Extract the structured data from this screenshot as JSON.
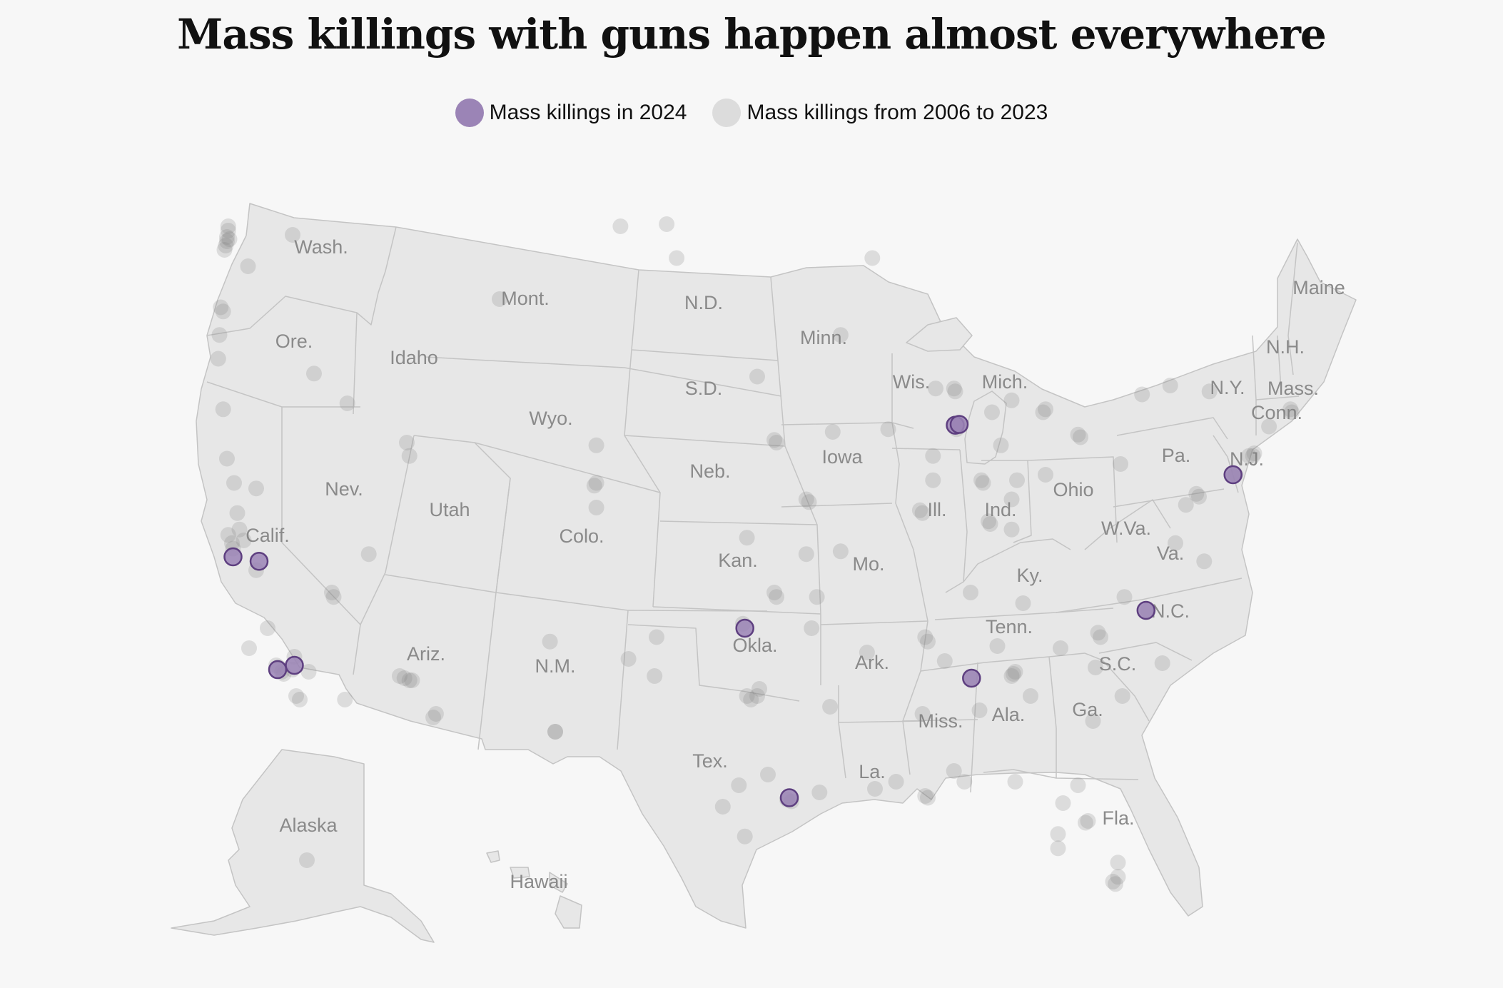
{
  "title": "Mass killings with guns happen almost everywhere",
  "legend": {
    "current_label": "Mass killings in 2024",
    "past_label": "Mass killings from 2006 to 2023"
  },
  "colors": {
    "background": "#f7f7f7",
    "land": "#e7e7e7",
    "border": "#c4c4c4",
    "current_fill": "#9b84b6",
    "current_stroke": "#5e3f80",
    "past_fill": "#808080"
  },
  "state_labels": [
    "Wash.",
    "Ore.",
    "Calif.",
    "Nev.",
    "Idaho",
    "Mont.",
    "Wyo.",
    "Utah",
    "Colo.",
    "Ariz.",
    "N.M.",
    "N.D.",
    "S.D.",
    "Neb.",
    "Kan.",
    "Okla.",
    "Tex.",
    "Minn.",
    "Iowa",
    "Mo.",
    "Ark.",
    "La.",
    "Wis.",
    "Ill.",
    "Mich.",
    "Ind.",
    "Ohio",
    "Ky.",
    "Tenn.",
    "Miss.",
    "Ala.",
    "Ga.",
    "Fla.",
    "S.C.",
    "N.C.",
    "Va.",
    "W.Va.",
    "Pa.",
    "N.Y.",
    "N.J.",
    "Conn.",
    "Mass.",
    "N.H.",
    "Maine",
    "Alaska",
    "Hawaii"
  ],
  "map_data": {
    "markers_2024": [
      {
        "lon": -121.9,
        "lat": 37.0
      },
      {
        "lon": -119.6,
        "lat": 36.9
      },
      {
        "lon": -117.3,
        "lat": 34.1
      },
      {
        "lon": -118.3,
        "lat": 33.9
      },
      {
        "lon": -87.9,
        "lat": 41.85
      },
      {
        "lon": -87.6,
        "lat": 41.88
      },
      {
        "lon": -97.4,
        "lat": 35.4
      },
      {
        "lon": -95.3,
        "lat": 29.9
      },
      {
        "lon": -86.75,
        "lat": 33.5
      },
      {
        "lon": -78.7,
        "lat": 35.8
      },
      {
        "lon": -75.2,
        "lat": 40.0
      }
    ],
    "markers_2006_2023": [
      {
        "lon": -122.3,
        "lat": 47.9
      },
      {
        "lon": -122.4,
        "lat": 47.6
      },
      {
        "lon": -122.4,
        "lat": 47.4
      },
      {
        "lon": -122.5,
        "lat": 47.2
      },
      {
        "lon": -122.6,
        "lat": 47.0
      },
      {
        "lon": -122.2,
        "lat": 47.5
      },
      {
        "lon": -122.3,
        "lat": 48.1
      },
      {
        "lon": -117.4,
        "lat": 47.7
      },
      {
        "lon": -120.5,
        "lat": 46.6
      },
      {
        "lon": -122.7,
        "lat": 45.5
      },
      {
        "lon": -122.9,
        "lat": 45.6
      },
      {
        "lon": -123.0,
        "lat": 44.9
      },
      {
        "lon": -123.1,
        "lat": 44.1
      },
      {
        "lon": -122.7,
        "lat": 42.4
      },
      {
        "lon": -116.2,
        "lat": 43.6
      },
      {
        "lon": -114.5,
        "lat": 42.6
      },
      {
        "lon": -122.4,
        "lat": 40.6
      },
      {
        "lon": -121.8,
        "lat": 39.7
      },
      {
        "lon": -121.5,
        "lat": 38.6
      },
      {
        "lon": -122.3,
        "lat": 37.8
      },
      {
        "lon": -122.0,
        "lat": 37.5
      },
      {
        "lon": -121.9,
        "lat": 37.3
      },
      {
        "lon": -121.3,
        "lat": 38.0
      },
      {
        "lon": -120.9,
        "lat": 37.6
      },
      {
        "lon": -119.8,
        "lat": 36.7
      },
      {
        "lon": -119.0,
        "lat": 35.4
      },
      {
        "lon": -120.4,
        "lat": 34.9
      },
      {
        "lon": -118.4,
        "lat": 34.1
      },
      {
        "lon": -118.2,
        "lat": 34.0
      },
      {
        "lon": -118.0,
        "lat": 33.8
      },
      {
        "lon": -117.9,
        "lat": 33.7
      },
      {
        "lon": -117.4,
        "lat": 33.9
      },
      {
        "lon": -117.2,
        "lat": 32.8
      },
      {
        "lon": -117.0,
        "lat": 32.7
      },
      {
        "lon": -116.5,
        "lat": 33.8
      },
      {
        "lon": -117.3,
        "lat": 34.5
      },
      {
        "lon": -119.8,
        "lat": 39.5
      },
      {
        "lon": -115.2,
        "lat": 36.2
      },
      {
        "lon": -115.1,
        "lat": 36.1
      },
      {
        "lon": -111.9,
        "lat": 40.7
      },
      {
        "lon": -112.0,
        "lat": 41.2
      },
      {
        "lon": -113.6,
        "lat": 37.1
      },
      {
        "lon": -112.1,
        "lat": 33.5
      },
      {
        "lon": -111.9,
        "lat": 33.4
      },
      {
        "lon": -111.8,
        "lat": 33.4
      },
      {
        "lon": -112.3,
        "lat": 33.6
      },
      {
        "lon": -111.0,
        "lat": 32.2
      },
      {
        "lon": -110.9,
        "lat": 32.3
      },
      {
        "lon": -114.6,
        "lat": 32.7
      },
      {
        "lon": -104.8,
        "lat": 39.7
      },
      {
        "lon": -104.9,
        "lat": 39.6
      },
      {
        "lon": -104.8,
        "lat": 38.8
      },
      {
        "lon": -106.6,
        "lat": 35.1
      },
      {
        "lon": -103.2,
        "lat": 34.4
      },
      {
        "lon": -106.4,
        "lat": 31.8
      },
      {
        "lon": -108.5,
        "lat": 45.8
      },
      {
        "lon": -104.8,
        "lat": 41.1
      },
      {
        "lon": -100.8,
        "lat": 46.8
      },
      {
        "lon": -101.3,
        "lat": 48.2
      },
      {
        "lon": -103.6,
        "lat": 48.1
      },
      {
        "lon": -96.8,
        "lat": 43.5
      },
      {
        "lon": -96.0,
        "lat": 41.3
      },
      {
        "lon": -95.9,
        "lat": 41.2
      },
      {
        "lon": -94.6,
        "lat": 39.1
      },
      {
        "lon": -94.5,
        "lat": 39.0
      },
      {
        "lon": -97.3,
        "lat": 37.7
      },
      {
        "lon": -97.5,
        "lat": 35.5
      },
      {
        "lon": -95.9,
        "lat": 36.1
      },
      {
        "lon": -96.0,
        "lat": 36.2
      },
      {
        "lon": -94.4,
        "lat": 35.4
      },
      {
        "lon": -96.8,
        "lat": 32.8
      },
      {
        "lon": -97.3,
        "lat": 32.8
      },
      {
        "lon": -96.7,
        "lat": 33.0
      },
      {
        "lon": -97.1,
        "lat": 32.7
      },
      {
        "lon": -97.7,
        "lat": 30.3
      },
      {
        "lon": -98.5,
        "lat": 29.4
      },
      {
        "lon": -95.4,
        "lat": 29.8
      },
      {
        "lon": -95.2,
        "lat": 29.7
      },
      {
        "lon": -94.1,
        "lat": 30.1
      },
      {
        "lon": -97.4,
        "lat": 27.8
      },
      {
        "lon": -101.9,
        "lat": 33.6
      },
      {
        "lon": -101.8,
        "lat": 35.2
      },
      {
        "lon": -106.4,
        "lat": 31.8
      },
      {
        "lon": -96.3,
        "lat": 30.6
      },
      {
        "lon": -93.3,
        "lat": 44.9
      },
      {
        "lon": -92.1,
        "lat": 46.8
      },
      {
        "lon": -93.6,
        "lat": 41.6
      },
      {
        "lon": -91.5,
        "lat": 41.7
      },
      {
        "lon": -90.2,
        "lat": 38.6
      },
      {
        "lon": -90.3,
        "lat": 38.7
      },
      {
        "lon": -94.6,
        "lat": 37.1
      },
      {
        "lon": -93.3,
        "lat": 37.2
      },
      {
        "lon": -92.3,
        "lat": 34.7
      },
      {
        "lon": -94.2,
        "lat": 36.1
      },
      {
        "lon": -91.2,
        "lat": 30.4
      },
      {
        "lon": -90.1,
        "lat": 30.0
      },
      {
        "lon": -90.0,
        "lat": 29.9
      },
      {
        "lon": -93.7,
        "lat": 32.5
      },
      {
        "lon": -92.0,
        "lat": 30.2
      },
      {
        "lon": -87.9,
        "lat": 43.0
      },
      {
        "lon": -88.0,
        "lat": 43.1
      },
      {
        "lon": -89.4,
        "lat": 43.1
      },
      {
        "lon": -87.7,
        "lat": 41.9
      },
      {
        "lon": -87.6,
        "lat": 41.8
      },
      {
        "lon": -87.8,
        "lat": 41.7
      },
      {
        "lon": -89.6,
        "lat": 40.7
      },
      {
        "lon": -89.6,
        "lat": 39.8
      },
      {
        "lon": -83.0,
        "lat": 42.4
      },
      {
        "lon": -83.1,
        "lat": 42.3
      },
      {
        "lon": -85.6,
        "lat": 42.3
      },
      {
        "lon": -84.5,
        "lat": 42.7
      },
      {
        "lon": -86.2,
        "lat": 39.8
      },
      {
        "lon": -86.1,
        "lat": 39.7
      },
      {
        "lon": -85.1,
        "lat": 41.1
      },
      {
        "lon": -83.0,
        "lat": 40.0
      },
      {
        "lon": -81.7,
        "lat": 41.5
      },
      {
        "lon": -81.6,
        "lat": 41.4
      },
      {
        "lon": -84.5,
        "lat": 39.1
      },
      {
        "lon": -84.2,
        "lat": 39.8
      },
      {
        "lon": -80.0,
        "lat": 40.4
      },
      {
        "lon": -75.2,
        "lat": 39.95
      },
      {
        "lon": -75.1,
        "lat": 40.0
      },
      {
        "lon": -76.6,
        "lat": 39.3
      },
      {
        "lon": -76.5,
        "lat": 39.2
      },
      {
        "lon": -77.0,
        "lat": 38.9
      },
      {
        "lon": -77.4,
        "lat": 37.5
      },
      {
        "lon": -76.3,
        "lat": 36.9
      },
      {
        "lon": -73.9,
        "lat": 40.7
      },
      {
        "lon": -73.8,
        "lat": 40.8
      },
      {
        "lon": -74.2,
        "lat": 40.7
      },
      {
        "lon": -72.7,
        "lat": 41.8
      },
      {
        "lon": -71.1,
        "lat": 42.4
      },
      {
        "lon": -71.0,
        "lat": 42.3
      },
      {
        "lon": -78.9,
        "lat": 42.9
      },
      {
        "lon": -77.6,
        "lat": 43.2
      },
      {
        "lon": -76.1,
        "lat": 43.0
      },
      {
        "lon": -85.8,
        "lat": 38.3
      },
      {
        "lon": -85.7,
        "lat": 38.2
      },
      {
        "lon": -84.5,
        "lat": 38.0
      },
      {
        "lon": -86.8,
        "lat": 36.2
      },
      {
        "lon": -90.0,
        "lat": 35.1
      },
      {
        "lon": -90.1,
        "lat": 35.2
      },
      {
        "lon": -85.3,
        "lat": 35.0
      },
      {
        "lon": -83.9,
        "lat": 35.96
      },
      {
        "lon": -90.2,
        "lat": 32.3
      },
      {
        "lon": -88.7,
        "lat": 34.3
      },
      {
        "lon": -86.8,
        "lat": 33.5
      },
      {
        "lon": -88.0,
        "lat": 30.7
      },
      {
        "lon": -86.3,
        "lat": 32.4
      },
      {
        "lon": -84.4,
        "lat": 33.7
      },
      {
        "lon": -84.3,
        "lat": 33.8
      },
      {
        "lon": -84.5,
        "lat": 33.6
      },
      {
        "lon": -81.1,
        "lat": 32.1
      },
      {
        "lon": -83.6,
        "lat": 32.8
      },
      {
        "lon": -80.8,
        "lat": 35.2
      },
      {
        "lon": -80.9,
        "lat": 35.3
      },
      {
        "lon": -78.6,
        "lat": 35.8
      },
      {
        "lon": -79.8,
        "lat": 36.1
      },
      {
        "lon": -77.9,
        "lat": 34.2
      },
      {
        "lon": -81.0,
        "lat": 34.0
      },
      {
        "lon": -79.9,
        "lat": 32.8
      },
      {
        "lon": -82.4,
        "lat": 34.9
      },
      {
        "lon": -81.7,
        "lat": 30.3
      },
      {
        "lon": -82.5,
        "lat": 27.9
      },
      {
        "lon": -81.4,
        "lat": 28.5
      },
      {
        "lon": -81.3,
        "lat": 28.6
      },
      {
        "lon": -80.2,
        "lat": 25.8
      },
      {
        "lon": -80.3,
        "lat": 25.9
      },
      {
        "lon": -80.1,
        "lat": 26.1
      },
      {
        "lon": -80.1,
        "lat": 26.7
      },
      {
        "lon": -87.2,
        "lat": 30.4
      },
      {
        "lon": -84.3,
        "lat": 30.4
      },
      {
        "lon": -82.3,
        "lat": 29.6
      },
      {
        "lon": -82.5,
        "lat": 27.3
      },
      {
        "lon": -149.9,
        "lat": 61.2
      }
    ]
  }
}
